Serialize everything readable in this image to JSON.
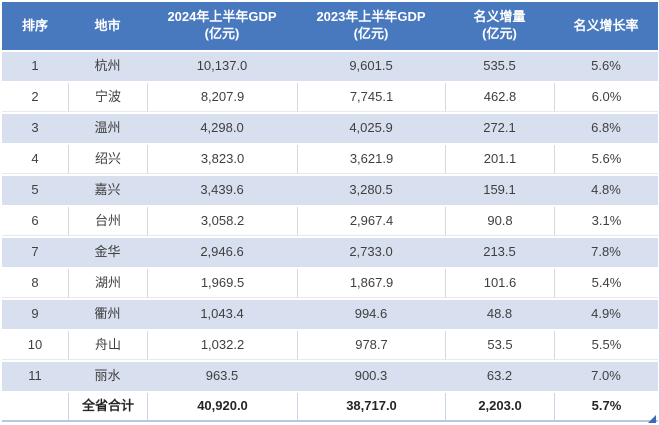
{
  "colors": {
    "header_bg": "#4878be",
    "header_text": "#ffffff",
    "alt_row_bg": "#d8dfee",
    "row_bg": "#ffffff",
    "body_text": "#3f3f3f",
    "grid_border": "#d8d8d8",
    "table_edge": "#b7c6e4",
    "corner_triangle": "#3a6bb5"
  },
  "chart_data": {
    "type": "table",
    "columns": [
      {
        "line1": "排序",
        "line2": ""
      },
      {
        "line1": "地市",
        "line2": ""
      },
      {
        "line1": "2024年上半年GDP",
        "line2": "(亿元)"
      },
      {
        "line1": "2023年上半年GDP",
        "line2": "(亿元)"
      },
      {
        "line1": "名义增量",
        "line2": "(亿元)"
      },
      {
        "line1": "名义增长率",
        "line2": ""
      }
    ],
    "rows": [
      [
        "1",
        "杭州",
        "10,137.0",
        "9,601.5",
        "535.5",
        "5.6%"
      ],
      [
        "2",
        "宁波",
        "8,207.9",
        "7,745.1",
        "462.8",
        "6.0%"
      ],
      [
        "3",
        "温州",
        "4,298.0",
        "4,025.9",
        "272.1",
        "6.8%"
      ],
      [
        "4",
        "绍兴",
        "3,823.0",
        "3,621.9",
        "201.1",
        "5.6%"
      ],
      [
        "5",
        "嘉兴",
        "3,439.6",
        "3,280.5",
        "159.1",
        "4.8%"
      ],
      [
        "6",
        "台州",
        "3,058.2",
        "2,967.4",
        "90.8",
        "3.1%"
      ],
      [
        "7",
        "金华",
        "2,946.6",
        "2,733.0",
        "213.5",
        "7.8%"
      ],
      [
        "8",
        "湖州",
        "1,969.5",
        "1,867.9",
        "101.6",
        "5.4%"
      ],
      [
        "9",
        "衢州",
        "1,043.4",
        "994.6",
        "48.8",
        "4.9%"
      ],
      [
        "10",
        "舟山",
        "1,032.2",
        "978.7",
        "53.5",
        "5.5%"
      ],
      [
        "11",
        "丽水",
        "963.5",
        "900.3",
        "63.2",
        "7.0%"
      ]
    ],
    "total_row": [
      "",
      "全省合计",
      "40,920.0",
      "38,717.0",
      "2,203.0",
      "5.7%"
    ]
  }
}
